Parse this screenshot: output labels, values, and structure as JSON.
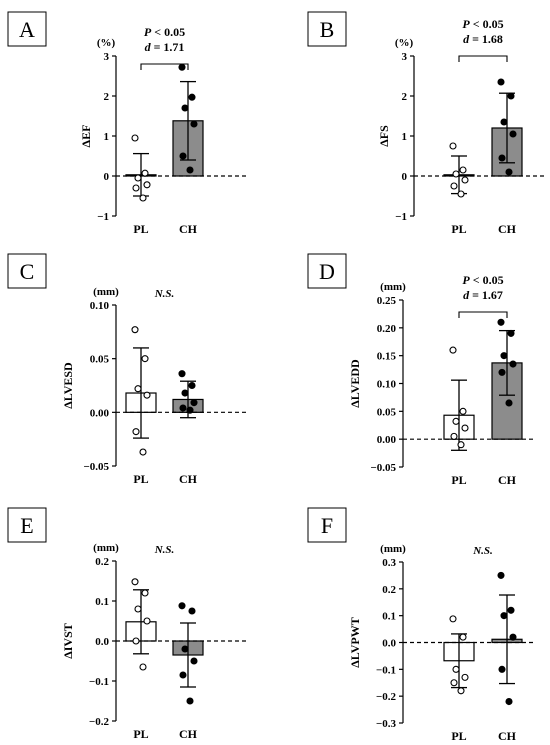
{
  "chart_data": [
    {
      "panel": "A",
      "type": "bar",
      "ylabel": "ΔEF",
      "unit": "(%)",
      "categories": [
        "PL",
        "CH"
      ],
      "ylim": [
        -1,
        3
      ],
      "yticks": [
        -1,
        0,
        1,
        2,
        3
      ],
      "ytick_labels": [
        "−1",
        "0",
        "1",
        "2",
        "3"
      ],
      "means": [
        0.03,
        1.38
      ],
      "sd": [
        0.53,
        0.98
      ],
      "points": [
        [
          0.95,
          0.07,
          -0.05,
          -0.22,
          -0.3,
          -0.55
        ],
        [
          2.72,
          1.97,
          1.7,
          1.3,
          0.5,
          0.15
        ]
      ],
      "stat": {
        "p_label": "P",
        "p_rest": " < 0.05",
        "d_label": "d",
        "d_rest": " = 1.71"
      }
    },
    {
      "panel": "B",
      "type": "bar",
      "ylabel": "ΔFS",
      "unit": "(%)",
      "categories": [
        "PL",
        "CH"
      ],
      "ylim": [
        -1,
        3
      ],
      "yticks": [
        -1,
        0,
        1,
        2,
        3
      ],
      "ytick_labels": [
        "−1",
        "0",
        "1",
        "2",
        "3"
      ],
      "means": [
        0.03,
        1.2
      ],
      "sd": [
        0.47,
        0.87
      ],
      "points": [
        [
          0.75,
          0.15,
          0.05,
          -0.1,
          -0.25,
          -0.45
        ],
        [
          2.35,
          2.0,
          1.35,
          1.05,
          0.45,
          0.1
        ]
      ],
      "stat": {
        "p_label": "P",
        "p_rest": " < 0.05",
        "d_label": "d",
        "d_rest": " = 1.68"
      }
    },
    {
      "panel": "C",
      "type": "bar",
      "ylabel": "ΔLVESD",
      "unit": "(mm)",
      "categories": [
        "PL",
        "CH"
      ],
      "ylim": [
        -0.05,
        0.1
      ],
      "yticks": [
        -0.05,
        0,
        0.05,
        0.1
      ],
      "ytick_labels": [
        "−0.05",
        "0.00",
        "0.05",
        "0.10"
      ],
      "means": [
        0.018,
        0.012
      ],
      "sd": [
        0.042,
        0.017
      ],
      "points": [
        [
          0.077,
          0.05,
          0.022,
          0.016,
          -0.018,
          -0.037
        ],
        [
          0.036,
          0.025,
          0.018,
          0.009,
          0.004,
          0.002
        ]
      ],
      "ns": "N.S."
    },
    {
      "panel": "D",
      "type": "bar",
      "ylabel": "ΔLVEDD",
      "unit": "(mm)",
      "categories": [
        "PL",
        "CH"
      ],
      "ylim": [
        -0.05,
        0.25
      ],
      "yticks": [
        -0.05,
        0,
        0.05,
        0.1,
        0.15,
        0.2,
        0.25
      ],
      "ytick_labels": [
        "−0.05",
        "0.00",
        "0.05",
        "0.10",
        "0.15",
        "0.20",
        "0.25"
      ],
      "means": [
        0.043,
        0.137
      ],
      "sd": [
        0.063,
        0.058
      ],
      "points": [
        [
          0.16,
          0.05,
          0.032,
          0.02,
          0.005,
          -0.01
        ],
        [
          0.21,
          0.19,
          0.15,
          0.135,
          0.12,
          0.065
        ]
      ],
      "stat": {
        "p_label": "P",
        "p_rest": " < 0.05",
        "d_label": "d",
        "d_rest": " = 1.67"
      }
    },
    {
      "panel": "E",
      "type": "bar",
      "ylabel": "ΔIVST",
      "unit": "(mm)",
      "categories": [
        "PL",
        "CH"
      ],
      "ylim": [
        -0.2,
        0.2
      ],
      "yticks": [
        -0.2,
        -0.1,
        0,
        0.1,
        0.2
      ],
      "ytick_labels": [
        "−0.2",
        "−0.1",
        "0.0",
        "0.1",
        "0.2"
      ],
      "means": [
        0.048,
        -0.035
      ],
      "sd": [
        0.08,
        0.08
      ],
      "points": [
        [
          0.148,
          0.12,
          0.08,
          0.05,
          0.0,
          -0.065
        ],
        [
          0.088,
          0.075,
          -0.02,
          -0.05,
          -0.085,
          -0.15
        ]
      ],
      "ns": "N.S."
    },
    {
      "panel": "F",
      "type": "bar",
      "ylabel": "ΔLVPWT",
      "unit": "(mm)",
      "categories": [
        "PL",
        "CH"
      ],
      "ylim": [
        -0.3,
        0.3
      ],
      "yticks": [
        -0.3,
        -0.2,
        -0.1,
        0,
        0.1,
        0.2,
        0.3
      ],
      "ytick_labels": [
        "−0.3",
        "−0.2",
        "−0.1",
        "0.0",
        "0.1",
        "0.2",
        "0.3"
      ],
      "means": [
        -0.068,
        0.012
      ],
      "sd": [
        0.1,
        0.165
      ],
      "points": [
        [
          0.088,
          0.02,
          -0.1,
          -0.13,
          -0.15,
          -0.18
        ],
        [
          0.25,
          0.12,
          0.1,
          0.02,
          -0.1,
          -0.22
        ]
      ],
      "ns": "N.S."
    }
  ]
}
